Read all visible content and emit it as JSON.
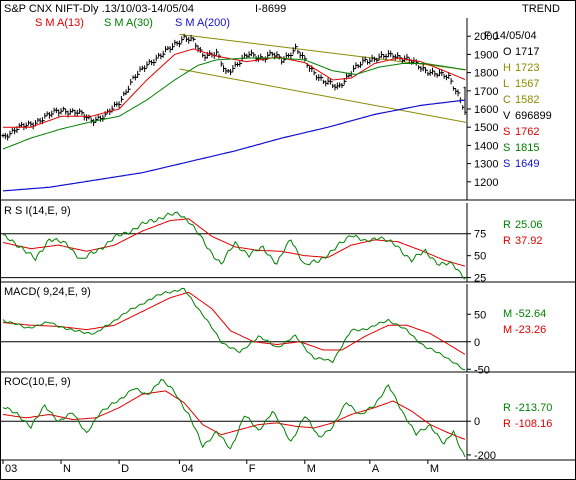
{
  "header": {
    "title": "S&P CNX NIFT-Dly .13/10/03-14/05/04",
    "info": "I-8699",
    "right_title": "TREND"
  },
  "colors": {
    "price": "#000000",
    "sma13": "#e00000",
    "sma30": "#008000",
    "sma200": "#1010d0",
    "channel": "#8b8b00",
    "rsi": "#008000",
    "rsi_ma": "#e00000"
  },
  "chart_data": [
    {
      "type": "line",
      "panel": "price",
      "legend": [
        "S M A(13)",
        "S M A(30)",
        "S M A(200)"
      ],
      "ylim": [
        1100,
        2100
      ],
      "yticks": [
        1200,
        1300,
        1400,
        1500,
        1600,
        1700,
        1800,
        1900,
        2000
      ],
      "x_labels": [
        "03",
        "N",
        "D",
        "04",
        "F",
        "M",
        "A",
        "M"
      ],
      "x_label_positions": [
        0,
        25,
        50,
        76,
        105,
        130,
        158,
        183
      ],
      "n_points": 200,
      "close_anchors": [
        [
          0,
          1440
        ],
        [
          6,
          1500
        ],
        [
          12,
          1510
        ],
        [
          18,
          1560
        ],
        [
          26,
          1595
        ],
        [
          32,
          1580
        ],
        [
          38,
          1540
        ],
        [
          44,
          1560
        ],
        [
          50,
          1640
        ],
        [
          56,
          1760
        ],
        [
          62,
          1850
        ],
        [
          68,
          1890
        ],
        [
          74,
          1960
        ],
        [
          78,
          1990
        ],
        [
          82,
          1970
        ],
        [
          86,
          1900
        ],
        [
          92,
          1900
        ],
        [
          96,
          1800
        ],
        [
          100,
          1840
        ],
        [
          106,
          1900
        ],
        [
          112,
          1880
        ],
        [
          116,
          1900
        ],
        [
          120,
          1870
        ],
        [
          126,
          1930
        ],
        [
          132,
          1830
        ],
        [
          138,
          1750
        ],
        [
          144,
          1720
        ],
        [
          150,
          1800
        ],
        [
          156,
          1870
        ],
        [
          162,
          1880
        ],
        [
          168,
          1900
        ],
        [
          172,
          1880
        ],
        [
          176,
          1860
        ],
        [
          180,
          1830
        ],
        [
          186,
          1790
        ],
        [
          192,
          1780
        ],
        [
          196,
          1680
        ],
        [
          199,
          1582
        ]
      ],
      "sma13_anchors": [
        [
          0,
          1500
        ],
        [
          12,
          1500
        ],
        [
          25,
          1560
        ],
        [
          38,
          1560
        ],
        [
          50,
          1600
        ],
        [
          62,
          1760
        ],
        [
          74,
          1900
        ],
        [
          82,
          1930
        ],
        [
          92,
          1890
        ],
        [
          105,
          1860
        ],
        [
          118,
          1885
        ],
        [
          130,
          1855
        ],
        [
          142,
          1760
        ],
        [
          150,
          1770
        ],
        [
          160,
          1850
        ],
        [
          170,
          1880
        ],
        [
          180,
          1860
        ],
        [
          190,
          1810
        ],
        [
          199,
          1762
        ]
      ],
      "sma30_anchors": [
        [
          0,
          1380
        ],
        [
          12,
          1440
        ],
        [
          25,
          1490
        ],
        [
          38,
          1530
        ],
        [
          50,
          1560
        ],
        [
          62,
          1650
        ],
        [
          74,
          1760
        ],
        [
          84,
          1840
        ],
        [
          92,
          1870
        ],
        [
          105,
          1880
        ],
        [
          118,
          1880
        ],
        [
          130,
          1870
        ],
        [
          142,
          1810
        ],
        [
          152,
          1790
        ],
        [
          162,
          1830
        ],
        [
          172,
          1850
        ],
        [
          182,
          1850
        ],
        [
          192,
          1830
        ],
        [
          199,
          1815
        ]
      ],
      "sma200_anchors": [
        [
          0,
          1150
        ],
        [
          20,
          1170
        ],
        [
          40,
          1210
        ],
        [
          60,
          1250
        ],
        [
          80,
          1310
        ],
        [
          100,
          1370
        ],
        [
          120,
          1440
        ],
        [
          140,
          1500
        ],
        [
          160,
          1570
        ],
        [
          180,
          1620
        ],
        [
          199,
          1649
        ]
      ],
      "channel_upper": [
        [
          76,
          2010
        ],
        [
          196,
          1830
        ]
      ],
      "channel_lower": [
        [
          76,
          1820
        ],
        [
          199,
          1540
        ]
      ],
      "stats": [
        {
          "label": "F 14/05/04",
          "value": "",
          "color": "#000000"
        },
        {
          "label": "O",
          "value": "1717",
          "color": "#000000"
        },
        {
          "label": "H",
          "value": "1723",
          "color": "#8b8b00"
        },
        {
          "label": "L",
          "value": "1567",
          "color": "#8b8b00"
        },
        {
          "label": "C",
          "value": "1582",
          "color": "#8b8b00"
        },
        {
          "label": "V",
          "value": "696899",
          "color": "#000000"
        },
        {
          "label": "S",
          "value": "1762",
          "color": "#e00000"
        },
        {
          "label": "S",
          "value": "1815",
          "color": "#008000"
        },
        {
          "label": "S",
          "value": "1649",
          "color": "#1010d0"
        }
      ]
    },
    {
      "type": "line",
      "panel": "rsi",
      "title": "R S I(14,E, 9)",
      "ylim": [
        20,
        110
      ],
      "yticks": [
        25,
        50,
        75
      ],
      "hlines": [
        25,
        75
      ],
      "rsi_anchors": [
        [
          0,
          72
        ],
        [
          8,
          60
        ],
        [
          14,
          45
        ],
        [
          20,
          70
        ],
        [
          28,
          62
        ],
        [
          34,
          45
        ],
        [
          40,
          55
        ],
        [
          48,
          70
        ],
        [
          56,
          80
        ],
        [
          64,
          90
        ],
        [
          70,
          95
        ],
        [
          76,
          98
        ],
        [
          80,
          90
        ],
        [
          88,
          60
        ],
        [
          94,
          40
        ],
        [
          100,
          65
        ],
        [
          106,
          50
        ],
        [
          112,
          60
        ],
        [
          118,
          40
        ],
        [
          124,
          70
        ],
        [
          130,
          38
        ],
        [
          136,
          45
        ],
        [
          142,
          55
        ],
        [
          150,
          75
        ],
        [
          156,
          65
        ],
        [
          162,
          72
        ],
        [
          170,
          60
        ],
        [
          176,
          45
        ],
        [
          182,
          55
        ],
        [
          188,
          40
        ],
        [
          194,
          40
        ],
        [
          199,
          25
        ]
      ],
      "ma_anchors": [
        [
          0,
          65
        ],
        [
          12,
          58
        ],
        [
          24,
          62
        ],
        [
          36,
          55
        ],
        [
          48,
          62
        ],
        [
          60,
          78
        ],
        [
          72,
          90
        ],
        [
          80,
          92
        ],
        [
          90,
          72
        ],
        [
          100,
          60
        ],
        [
          110,
          56
        ],
        [
          120,
          55
        ],
        [
          130,
          50
        ],
        [
          140,
          48
        ],
        [
          150,
          62
        ],
        [
          160,
          68
        ],
        [
          170,
          66
        ],
        [
          180,
          56
        ],
        [
          190,
          45
        ],
        [
          199,
          38
        ]
      ],
      "stats": [
        {
          "label": "R",
          "value": "25.06",
          "color": "#008000"
        },
        {
          "label": "R",
          "value": "37.92",
          "color": "#e00000"
        }
      ]
    },
    {
      "type": "line",
      "panel": "macd",
      "title": "MACD( 9,24,E, 9)",
      "ylim": [
        -55,
        105
      ],
      "yticks": [
        -50,
        0,
        50
      ],
      "hlines": [
        0
      ],
      "macd_anchors": [
        [
          0,
          40
        ],
        [
          10,
          25
        ],
        [
          20,
          35
        ],
        [
          30,
          20
        ],
        [
          40,
          15
        ],
        [
          50,
          45
        ],
        [
          60,
          70
        ],
        [
          70,
          90
        ],
        [
          78,
          95
        ],
        [
          86,
          50
        ],
        [
          94,
          0
        ],
        [
          102,
          -20
        ],
        [
          110,
          10
        ],
        [
          118,
          -10
        ],
        [
          126,
          10
        ],
        [
          134,
          -30
        ],
        [
          142,
          -35
        ],
        [
          150,
          20
        ],
        [
          158,
          25
        ],
        [
          166,
          40
        ],
        [
          174,
          20
        ],
        [
          182,
          -10
        ],
        [
          190,
          -25
        ],
        [
          199,
          -53
        ]
      ],
      "signal_anchors": [
        [
          0,
          35
        ],
        [
          12,
          30
        ],
        [
          24,
          28
        ],
        [
          36,
          22
        ],
        [
          48,
          30
        ],
        [
          60,
          55
        ],
        [
          72,
          80
        ],
        [
          80,
          90
        ],
        [
          90,
          60
        ],
        [
          98,
          20
        ],
        [
          108,
          0
        ],
        [
          118,
          -5
        ],
        [
          128,
          0
        ],
        [
          138,
          -15
        ],
        [
          146,
          -15
        ],
        [
          156,
          10
        ],
        [
          166,
          30
        ],
        [
          174,
          30
        ],
        [
          184,
          15
        ],
        [
          192,
          -5
        ],
        [
          199,
          -23
        ]
      ],
      "stats": [
        {
          "label": "M",
          "value": "-52.64",
          "color": "#008000"
        },
        {
          "label": "M",
          "value": "-23.26",
          "color": "#e00000"
        }
      ]
    },
    {
      "type": "line",
      "panel": "roc",
      "title": "ROC(10,E, 9)",
      "ylim": [
        -230,
        280
      ],
      "yticks": [
        -200,
        0
      ],
      "hlines": [
        0
      ],
      "roc_anchors": [
        [
          0,
          80
        ],
        [
          6,
          50
        ],
        [
          12,
          -40
        ],
        [
          18,
          100
        ],
        [
          24,
          -10
        ],
        [
          30,
          60
        ],
        [
          36,
          -80
        ],
        [
          42,
          60
        ],
        [
          50,
          120
        ],
        [
          56,
          200
        ],
        [
          62,
          150
        ],
        [
          68,
          250
        ],
        [
          74,
          170
        ],
        [
          80,
          40
        ],
        [
          86,
          -150
        ],
        [
          92,
          -60
        ],
        [
          98,
          -170
        ],
        [
          104,
          40
        ],
        [
          110,
          -60
        ],
        [
          116,
          60
        ],
        [
          124,
          -120
        ],
        [
          130,
          30
        ],
        [
          136,
          -90
        ],
        [
          142,
          -40
        ],
        [
          148,
          120
        ],
        [
          154,
          30
        ],
        [
          160,
          100
        ],
        [
          166,
          210
        ],
        [
          172,
          60
        ],
        [
          178,
          -80
        ],
        [
          184,
          -20
        ],
        [
          190,
          -140
        ],
        [
          194,
          -60
        ],
        [
          199,
          -214
        ]
      ],
      "ma_anchors": [
        [
          0,
          40
        ],
        [
          10,
          20
        ],
        [
          20,
          40
        ],
        [
          30,
          10
        ],
        [
          40,
          20
        ],
        [
          50,
          80
        ],
        [
          60,
          160
        ],
        [
          70,
          180
        ],
        [
          78,
          110
        ],
        [
          86,
          -20
        ],
        [
          94,
          -80
        ],
        [
          102,
          -50
        ],
        [
          110,
          -20
        ],
        [
          118,
          -10
        ],
        [
          126,
          -30
        ],
        [
          134,
          -40
        ],
        [
          142,
          -10
        ],
        [
          150,
          40
        ],
        [
          160,
          80
        ],
        [
          168,
          120
        ],
        [
          176,
          60
        ],
        [
          184,
          -20
        ],
        [
          192,
          -70
        ],
        [
          199,
          -108
        ]
      ],
      "stats": [
        {
          "label": "R",
          "value": "-213.70",
          "color": "#008000"
        },
        {
          "label": "R",
          "value": "-108.16",
          "color": "#e00000"
        }
      ]
    }
  ]
}
